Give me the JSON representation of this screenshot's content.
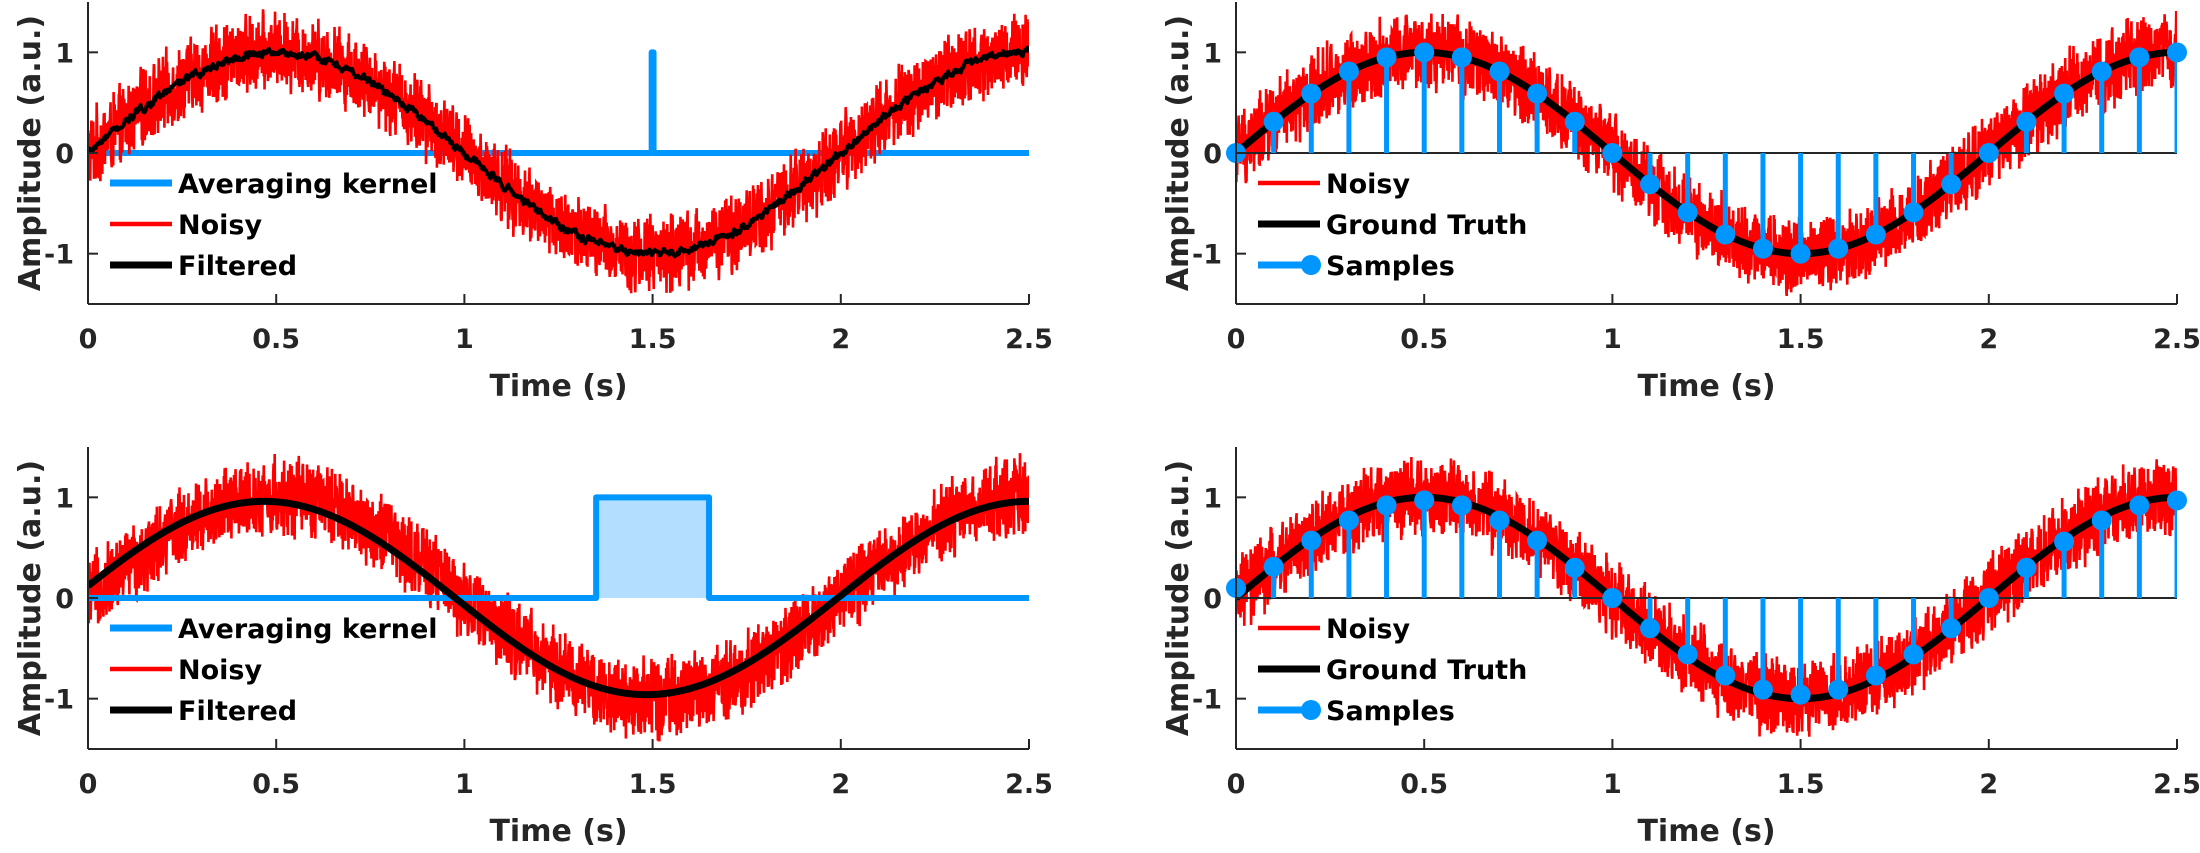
{
  "chart_data": [
    {
      "id": "top-left",
      "type": "line",
      "xlabel": "Time (s)",
      "ylabel": "Amplitude (a.u.)",
      "xlim": [
        0,
        2.5
      ],
      "ylim": [
        -1.5,
        1.5
      ],
      "xticks": [
        0,
        0.5,
        1,
        1.5,
        2,
        2.5
      ],
      "xtick_labels": [
        "0",
        "0.5",
        "1",
        "1.5",
        "2",
        "2.5"
      ],
      "yticks": [
        -1,
        0,
        1
      ],
      "ytick_labels": [
        "-1",
        "0",
        "1"
      ],
      "legend": {
        "placement": "lower-left",
        "entries": [
          "Averaging kernel",
          "Noisy",
          "Filtered"
        ]
      },
      "series": [
        {
          "name": "Averaging kernel",
          "kind": "kernel",
          "color": "#0096FF",
          "function": "rect",
          "center": 1.5,
          "width": 0.005,
          "height": 1,
          "filled": false
        },
        {
          "name": "Noisy",
          "kind": "noisy",
          "color": "#FF0000",
          "function": "sin(pi*t)",
          "noise_amplitude": 0.45
        },
        {
          "name": "Filtered",
          "kind": "filtered",
          "color": "#000000",
          "function": "sin(pi*t)",
          "amplitude": 1.0,
          "residual_noise": 0.03
        }
      ]
    },
    {
      "id": "top-right",
      "type": "line",
      "xlabel": "Time (s)",
      "ylabel": "Amplitude (a.u.)",
      "xlim": [
        0,
        2.5
      ],
      "ylim": [
        -1.5,
        1.5
      ],
      "xticks": [
        0,
        0.5,
        1,
        1.5,
        2,
        2.5
      ],
      "xtick_labels": [
        "0",
        "0.5",
        "1",
        "1.5",
        "2",
        "2.5"
      ],
      "yticks": [
        -1,
        0,
        1
      ],
      "ytick_labels": [
        "-1",
        "0",
        "1"
      ],
      "legend": {
        "placement": "lower-left",
        "entries": [
          "Noisy",
          "Ground Truth",
          "Samples"
        ]
      },
      "series": [
        {
          "name": "Noisy",
          "kind": "noisy",
          "color": "#FF0000",
          "function": "sin(pi*t)",
          "noise_amplitude": 0.45
        },
        {
          "name": "Ground Truth",
          "kind": "truth",
          "color": "#000000",
          "function": "sin(pi*t)"
        },
        {
          "name": "Samples",
          "kind": "stem",
          "color": "#0096FF",
          "x": [
            0,
            0.1,
            0.2,
            0.3,
            0.4,
            0.5,
            0.6,
            0.7,
            0.8,
            0.9,
            1.0,
            1.1,
            1.2,
            1.3,
            1.4,
            1.5,
            1.6,
            1.7,
            1.8,
            1.9,
            2.0,
            2.1,
            2.2,
            2.3,
            2.4,
            2.5
          ],
          "y": [
            0,
            0.31,
            0.59,
            0.81,
            0.95,
            1.0,
            0.95,
            0.81,
            0.59,
            0.31,
            0,
            -0.31,
            -0.59,
            -0.81,
            -0.95,
            -1.0,
            -0.95,
            -0.81,
            -0.59,
            -0.31,
            0,
            0.31,
            0.59,
            0.81,
            0.95,
            1.0
          ]
        }
      ]
    },
    {
      "id": "bottom-left",
      "type": "line",
      "xlabel": "Time (s)",
      "ylabel": "Amplitude (a.u.)",
      "xlim": [
        0,
        2.5
      ],
      "ylim": [
        -1.5,
        1.5
      ],
      "xticks": [
        0,
        0.5,
        1,
        1.5,
        2,
        2.5
      ],
      "xtick_labels": [
        "0",
        "0.5",
        "1",
        "1.5",
        "2",
        "2.5"
      ],
      "yticks": [
        -1,
        0,
        1
      ],
      "ytick_labels": [
        "-1",
        "0",
        "1"
      ],
      "legend": {
        "placement": "lower-left",
        "entries": [
          "Averaging kernel",
          "Noisy",
          "Filtered"
        ]
      },
      "series": [
        {
          "name": "Averaging kernel",
          "kind": "kernel",
          "color": "#0096FF",
          "fill": "#B3DEFF",
          "function": "rect",
          "center": 1.5,
          "width": 0.3,
          "height": 1,
          "filled": true
        },
        {
          "name": "Noisy",
          "kind": "noisy",
          "color": "#FF0000",
          "function": "sin(pi*t)",
          "noise_amplitude": 0.45
        },
        {
          "name": "Filtered",
          "kind": "filtered",
          "color": "#000000",
          "function": "sin(pi*t)",
          "amplitude": 0.96,
          "residual_noise": 0,
          "start_value": 0.12,
          "end_value": 0.96
        }
      ]
    },
    {
      "id": "bottom-right",
      "type": "line",
      "xlabel": "Time (s)",
      "ylabel": "Amplitude (a.u.)",
      "xlim": [
        0,
        2.5
      ],
      "ylim": [
        -1.5,
        1.5
      ],
      "xticks": [
        0,
        0.5,
        1,
        1.5,
        2,
        2.5
      ],
      "xtick_labels": [
        "0",
        "0.5",
        "1",
        "1.5",
        "2",
        "2.5"
      ],
      "yticks": [
        -1,
        0,
        1
      ],
      "ytick_labels": [
        "-1",
        "0",
        "1"
      ],
      "legend": {
        "placement": "lower-left",
        "entries": [
          "Noisy",
          "Ground Truth",
          "Samples"
        ]
      },
      "series": [
        {
          "name": "Noisy",
          "kind": "noisy",
          "color": "#FF0000",
          "function": "sin(pi*t)",
          "noise_amplitude": 0.45
        },
        {
          "name": "Ground Truth",
          "kind": "truth",
          "color": "#000000",
          "function": "sin(pi*t)"
        },
        {
          "name": "Samples",
          "kind": "stem",
          "color": "#0096FF",
          "x": [
            0,
            0.1,
            0.2,
            0.3,
            0.4,
            0.5,
            0.6,
            0.7,
            0.8,
            0.9,
            1.0,
            1.1,
            1.2,
            1.3,
            1.4,
            1.5,
            1.6,
            1.7,
            1.8,
            1.9,
            2.0,
            2.1,
            2.2,
            2.3,
            2.4,
            2.5
          ],
          "y": [
            0.1,
            0.31,
            0.57,
            0.77,
            0.92,
            0.97,
            0.92,
            0.77,
            0.57,
            0.3,
            0.0,
            -0.3,
            -0.56,
            -0.77,
            -0.91,
            -0.96,
            -0.91,
            -0.77,
            -0.56,
            -0.3,
            0.0,
            0.3,
            0.56,
            0.77,
            0.92,
            0.97
          ]
        }
      ]
    }
  ]
}
